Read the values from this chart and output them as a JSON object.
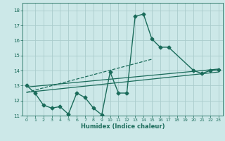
{
  "xlabel": "Humidex (Indice chaleur)",
  "ylabel": "",
  "bg_color": "#cce8e8",
  "grid_color": "#aacccc",
  "line_color": "#1a6b5a",
  "xlim": [
    -0.5,
    23.5
  ],
  "ylim": [
    11,
    18.5
  ],
  "xticks": [
    0,
    1,
    2,
    3,
    4,
    5,
    6,
    7,
    8,
    9,
    10,
    11,
    12,
    13,
    14,
    15,
    16,
    17,
    18,
    19,
    20,
    21,
    22,
    23
  ],
  "yticks": [
    11,
    12,
    13,
    14,
    15,
    16,
    17,
    18
  ],
  "lines": [
    {
      "x": [
        0,
        1,
        2,
        3,
        4,
        5,
        6,
        7,
        8,
        9,
        10,
        11,
        12,
        13,
        14,
        15,
        16,
        17,
        20,
        21,
        22,
        23
      ],
      "y": [
        13.0,
        12.5,
        11.7,
        11.5,
        11.6,
        11.1,
        12.5,
        12.2,
        11.5,
        11.05,
        13.9,
        12.5,
        12.5,
        17.6,
        17.75,
        16.1,
        15.55,
        15.55,
        14.0,
        13.8,
        14.0,
        14.05
      ],
      "marker": "D",
      "markersize": 2.5,
      "linewidth": 1.0,
      "linestyle": "-"
    },
    {
      "x": [
        0,
        23
      ],
      "y": [
        12.9,
        14.1
      ],
      "marker": null,
      "linewidth": 0.9,
      "linestyle": "-"
    },
    {
      "x": [
        0,
        23
      ],
      "y": [
        12.55,
        13.9
      ],
      "marker": null,
      "linewidth": 0.9,
      "linestyle": "-"
    },
    {
      "x": [
        0,
        15
      ],
      "y": [
        12.55,
        14.75
      ],
      "marker": null,
      "linewidth": 0.9,
      "linestyle": "--"
    }
  ]
}
